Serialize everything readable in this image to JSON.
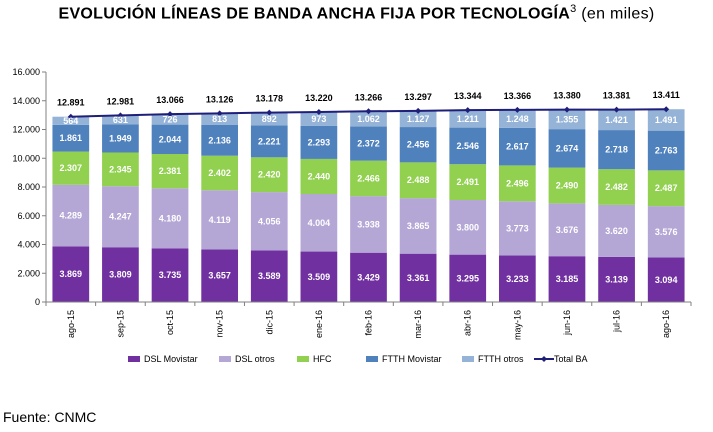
{
  "title": {
    "main": "EVOLUCIÓN LÍNEAS DE BANDA ANCHA FIJA POR TECNOLOGÍA",
    "superscript": "3",
    "unit": "(en miles)"
  },
  "source": "Fuente: CNMC",
  "chart_data": {
    "type": "bar",
    "stacked": true,
    "title": "EVOLUCIÓN LÍNEAS DE BANDA ANCHA FIJA POR TECNOLOGÍA (en miles)",
    "xlabel": "",
    "ylabel": "",
    "ylim": [
      0,
      16000
    ],
    "yticks": [
      0,
      2000,
      4000,
      6000,
      8000,
      10000,
      12000,
      14000,
      16000
    ],
    "ytick_labels": [
      "0",
      "2.000",
      "4.000",
      "6.000",
      "8.000",
      "10.000",
      "12.000",
      "14.000",
      "16.000"
    ],
    "categories": [
      "ago-15",
      "sep-15",
      "oct-15",
      "nov-15",
      "dic-15",
      "ene-16",
      "feb-16",
      "mar-16",
      "abr-16",
      "may-16",
      "jun-16",
      "jul-16",
      "ago-16"
    ],
    "series": [
      {
        "name": "DSL Movistar",
        "color": "#7030a0",
        "label_color": "#ffffff",
        "values": [
          3869,
          3809,
          3735,
          3657,
          3589,
          3509,
          3429,
          3361,
          3295,
          3233,
          3185,
          3139,
          3094
        ],
        "labels": [
          "3.869",
          "3.809",
          "3.735",
          "3.657",
          "3.589",
          "3.509",
          "3.429",
          "3.361",
          "3.295",
          "3.233",
          "3.185",
          "3.139",
          "3.094"
        ]
      },
      {
        "name": "DSL otros",
        "color": "#b4a7d6",
        "label_color": "#ffffff",
        "values": [
          4289,
          4247,
          4180,
          4119,
          4056,
          4004,
          3938,
          3865,
          3800,
          3773,
          3676,
          3620,
          3576
        ],
        "labels": [
          "4.289",
          "4.247",
          "4.180",
          "4.119",
          "4.056",
          "4.004",
          "3.938",
          "3.865",
          "3.800",
          "3.773",
          "3.676",
          "3.620",
          "3.576"
        ]
      },
      {
        "name": "HFC",
        "color": "#92d050",
        "label_color": "#ffffff",
        "values": [
          2307,
          2345,
          2381,
          2402,
          2420,
          2440,
          2466,
          2488,
          2491,
          2496,
          2490,
          2482,
          2487
        ],
        "labels": [
          "2.307",
          "2.345",
          "2.381",
          "2.402",
          "2.420",
          "2.440",
          "2.466",
          "2.488",
          "2.491",
          "2.496",
          "2.490",
          "2.482",
          "2.487"
        ]
      },
      {
        "name": "FTTH Movistar",
        "color": "#4f81bd",
        "label_color": "#ffffff",
        "values": [
          1861,
          1949,
          2044,
          2136,
          2221,
          2293,
          2372,
          2456,
          2546,
          2617,
          2674,
          2718,
          2763
        ],
        "labels": [
          "1.861",
          "1.949",
          "2.044",
          "2.136",
          "2.221",
          "2.293",
          "2.372",
          "2.456",
          "2.546",
          "2.617",
          "2.674",
          "2.718",
          "2.763"
        ]
      },
      {
        "name": "FTTH otros",
        "color": "#95b3d7",
        "label_color": "#ffffff",
        "values": [
          564,
          631,
          726,
          813,
          892,
          973,
          1062,
          1127,
          1211,
          1248,
          1355,
          1421,
          1491
        ],
        "labels": [
          "564",
          "631",
          "726",
          "813",
          "892",
          "973",
          "1.062",
          "1.127",
          "1.211",
          "1.248",
          "1.355",
          "1.421",
          "1.491"
        ]
      }
    ],
    "line": {
      "name": "Total BA",
      "color": "#1f1f7a",
      "values": [
        12891,
        12981,
        13066,
        13126,
        13178,
        13220,
        13266,
        13297,
        13344,
        13366,
        13380,
        13381,
        13411
      ],
      "labels": [
        "12.891",
        "12.981",
        "13.066",
        "13.126",
        "13.178",
        "13.220",
        "13.266",
        "13.297",
        "13.344",
        "13.366",
        "13.380",
        "13.381",
        "13.411"
      ]
    },
    "legend": [
      "DSL Movistar",
      "DSL otros",
      "HFC",
      "FTTH Movistar",
      "FTTH otros",
      "Total BA"
    ],
    "legend_position": "bottom",
    "grid": false
  }
}
